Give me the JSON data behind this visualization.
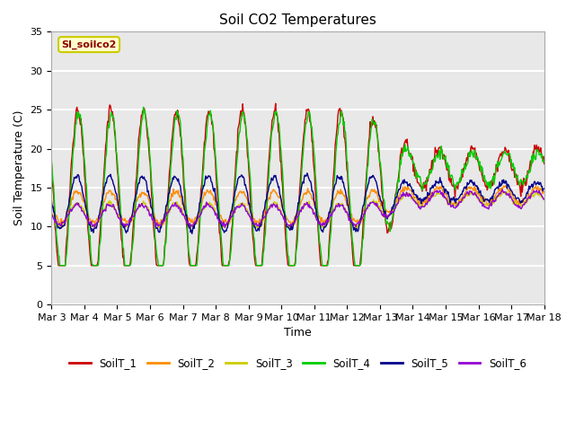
{
  "title": "Soil CO2 Temperatures",
  "xlabel": "Time",
  "ylabel": "Soil Temperature (C)",
  "ylim": [
    0,
    35
  ],
  "yticks": [
    0,
    5,
    10,
    15,
    20,
    25,
    30,
    35
  ],
  "x_labels": [
    "Mar 3",
    "Mar 4",
    "Mar 5",
    "Mar 6",
    "Mar 7",
    "Mar 8",
    "Mar 9",
    "Mar 10",
    "Mar 11",
    "Mar 12",
    "Mar 13",
    "Mar 14",
    "Mar 15",
    "Mar 16",
    "Mar 17",
    "Mar 18"
  ],
  "annotation_text": "SI_soilco2",
  "annotation_color": "#8B0000",
  "annotation_bg": "#FFFFCC",
  "annotation_edge": "#CCCC00",
  "series_colors": {
    "SoilT_1": "#CC0000",
    "SoilT_2": "#FF8C00",
    "SoilT_3": "#CCCC00",
    "SoilT_4": "#00CC00",
    "SoilT_5": "#00008B",
    "SoilT_6": "#9400D3"
  },
  "background_color": "#E8E8E8",
  "grid_color": "#FFFFFF",
  "n_days": 15
}
